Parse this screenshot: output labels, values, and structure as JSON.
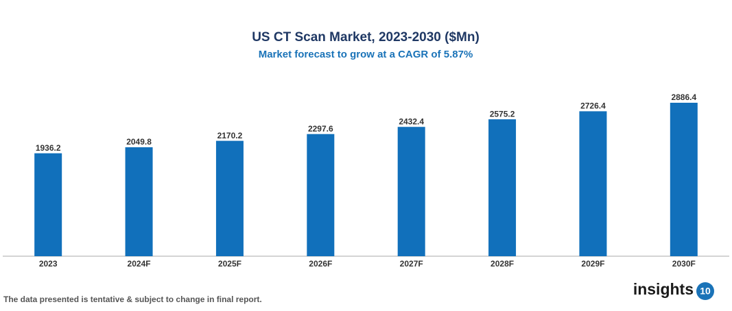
{
  "chart_data": {
    "type": "bar",
    "title": "US CT Scan Market, 2023-2030 ($Mn)",
    "subtitle": "Market forecast to grow at a CAGR of 5.87%",
    "categories": [
      "2023",
      "2024F",
      "2025F",
      "2026F",
      "2027F",
      "2028F",
      "2029F",
      "2030F"
    ],
    "values": [
      1936.2,
      2049.8,
      2170.2,
      2297.6,
      2432.4,
      2575.2,
      2726.4,
      2886.4
    ],
    "color": "#1170bb"
  },
  "footer": {
    "note": "The data presented is tentative & subject to change in final report.",
    "logo": {
      "text": "insights",
      "badge": "10"
    }
  }
}
